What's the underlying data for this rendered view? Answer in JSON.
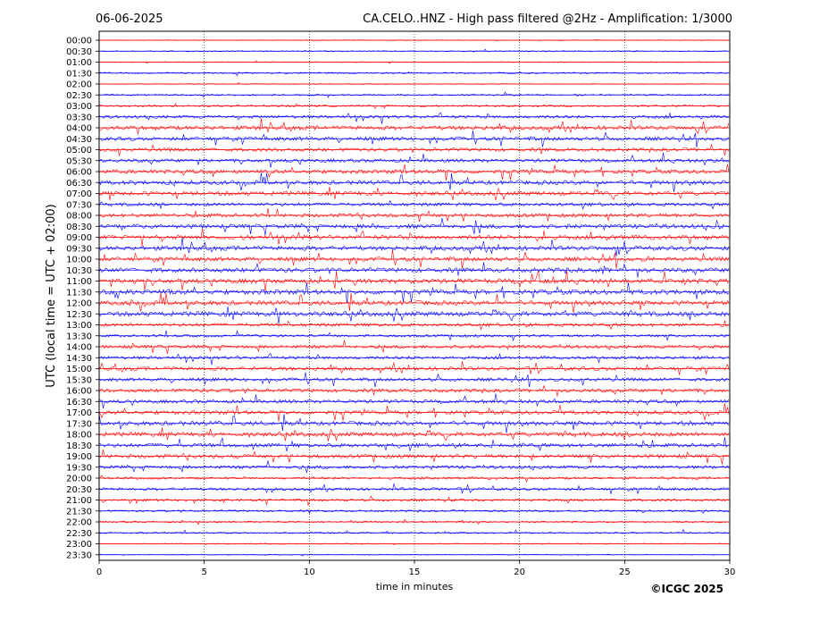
{
  "chart_data": {
    "type": "line",
    "title_left": "06-06-2025",
    "title": "CA.CELO..HNZ - High pass filtered @2Hz - Amplification: 1/3000",
    "xlabel": "time in minutes",
    "ylabel": "UTC (local time = UTC + 02:00)",
    "copyright": "©ICGC 2025",
    "xlim": [
      0,
      30
    ],
    "x_ticks": [
      0,
      5,
      10,
      15,
      20,
      25,
      30
    ],
    "x_gridlines": [
      5,
      10,
      15,
      20,
      25
    ],
    "grid": "vertical dotted",
    "row_labels": [
      "00:00",
      "00:30",
      "01:00",
      "01:30",
      "02:00",
      "02:30",
      "03:00",
      "03:30",
      "04:00",
      "04:30",
      "05:00",
      "05:30",
      "06:00",
      "06:30",
      "07:00",
      "07:30",
      "08:00",
      "08:30",
      "09:00",
      "09:30",
      "10:00",
      "10:30",
      "11:00",
      "11:30",
      "12:00",
      "12:30",
      "13:00",
      "13:30",
      "14:00",
      "14:30",
      "15:00",
      "15:30",
      "16:00",
      "16:30",
      "17:00",
      "17:30",
      "18:00",
      "18:30",
      "19:00",
      "19:30",
      "20:00",
      "20:30",
      "21:00",
      "21:30",
      "22:00",
      "22:30",
      "23:00",
      "23:30"
    ],
    "series_colors": [
      "#ff0000",
      "#0000ff"
    ],
    "row_activity": [
      0.05,
      0.1,
      0.08,
      0.2,
      0.05,
      0.2,
      0.3,
      0.55,
      0.75,
      0.7,
      0.65,
      0.65,
      0.75,
      0.8,
      0.8,
      0.6,
      0.65,
      0.8,
      0.85,
      0.85,
      0.8,
      0.85,
      0.9,
      0.95,
      0.85,
      0.9,
      0.6,
      0.45,
      0.6,
      0.55,
      0.7,
      0.6,
      0.65,
      0.65,
      0.75,
      0.8,
      0.8,
      0.75,
      0.7,
      0.6,
      0.4,
      0.5,
      0.4,
      0.3,
      0.25,
      0.2,
      0.1,
      0.05
    ]
  }
}
